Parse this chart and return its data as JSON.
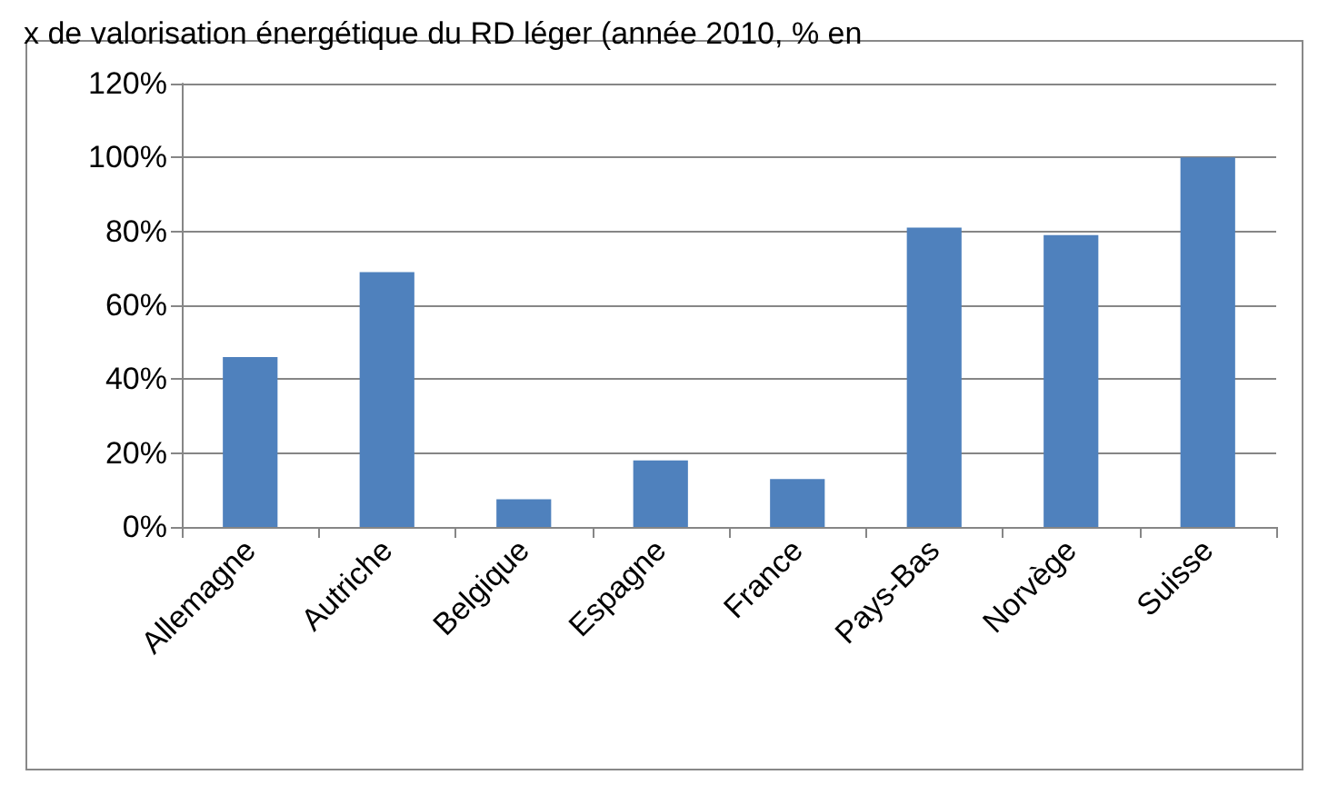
{
  "chart_data": {
    "type": "bar",
    "title": "x de valorisation énergétique du RD léger (année 2010, % en",
    "categories": [
      "Allemagne",
      "Autriche",
      "Belgique",
      "Espagne",
      "France",
      "Pays-Bas",
      "Norvège",
      "Suisse"
    ],
    "values": [
      46,
      69,
      7.5,
      18,
      13,
      81,
      79,
      100
    ],
    "color": "#4f81bd",
    "ylim": [
      0,
      120
    ],
    "yticks": [
      {
        "value": 0,
        "label": "0%"
      },
      {
        "value": 20,
        "label": "20%"
      },
      {
        "value": 40,
        "label": "40%"
      },
      {
        "value": 60,
        "label": "60%"
      },
      {
        "value": 80,
        "label": "80%"
      },
      {
        "value": 100,
        "label": "100%"
      },
      {
        "value": 120,
        "label": "120%"
      }
    ],
    "grid": "y"
  }
}
